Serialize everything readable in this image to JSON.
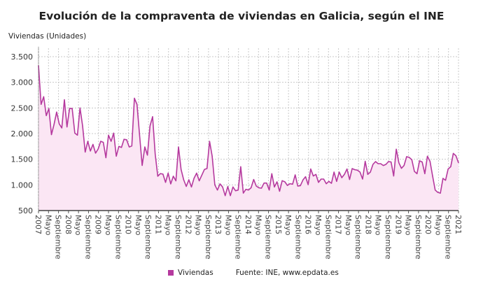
{
  "chart_data": {
    "type": "area",
    "title": "Evolución de la compraventa de viviendas en Galicia, según el INE",
    "ylabel": "Viviendas (Unidades)",
    "xlabel": "",
    "ylim": [
      500,
      3500
    ],
    "yticks": [
      "500",
      "1.000",
      "1.500",
      "2.000",
      "2.500",
      "3.000",
      "3.500"
    ],
    "ytick_values": [
      500,
      1000,
      1500,
      2000,
      2500,
      3000,
      3500
    ],
    "x_range": [
      "2007-01",
      "2021-01"
    ],
    "xticks": [
      "2007",
      "Mayo",
      "Septiembre",
      "2008",
      "Mayo",
      "Septiembre",
      "2009",
      "Mayo",
      "Septiembre",
      "2010",
      "Mayo",
      "Septiembre",
      "2011",
      "Mayo",
      "Septiembre",
      "2012",
      "Mayo",
      "Septiembre",
      "2013",
      "Mayo",
      "Septiembre",
      "2014",
      "Mayo",
      "Septiembre",
      "2015",
      "Mayo",
      "Septiembre",
      "2016",
      "Mayo",
      "Septiembre",
      "2017",
      "Mayo",
      "Septiembre",
      "2018",
      "Mayo",
      "Septiembre",
      "2019",
      "Mayo",
      "Septiembre",
      "2020",
      "Mayo",
      "Septiembre",
      "2021"
    ],
    "grid": true,
    "legend_placement": "bottom",
    "series": [
      {
        "name": "Viviendas",
        "color": "#b5399e",
        "fill": "#fbe6f4",
        "values": [
          3330,
          2570,
          2720,
          2350,
          2490,
          1980,
          2180,
          2420,
          2190,
          2110,
          2660,
          2130,
          2490,
          2490,
          2010,
          1970,
          2500,
          2150,
          1640,
          1850,
          1660,
          1790,
          1620,
          1700,
          1850,
          1830,
          1530,
          1970,
          1850,
          2010,
          1560,
          1750,
          1730,
          1890,
          1880,
          1740,
          1760,
          2690,
          2570,
          1970,
          1380,
          1740,
          1580,
          2150,
          2330,
          1600,
          1170,
          1220,
          1210,
          1050,
          1230,
          1020,
          1170,
          1080,
          1740,
          1300,
          1100,
          970,
          1100,
          960,
          1130,
          1230,
          1080,
          1190,
          1300,
          1320,
          1850,
          1560,
          1000,
          900,
          1020,
          960,
          790,
          968,
          790,
          960,
          886,
          900,
          1355,
          840,
          914,
          900,
          945,
          1105,
          977,
          945,
          936,
          1036,
          1036,
          900,
          1218,
          960,
          1060,
          877,
          1082,
          1060,
          990,
          1023,
          1014,
          1195,
          977,
          986,
          1096,
          1160,
          1005,
          1310,
          1173,
          1205,
          1050,
          1114,
          1114,
          1023,
          1068,
          1032,
          1250,
          1068,
          1250,
          1141,
          1205,
          1310,
          1105,
          1318,
          1296,
          1287,
          1250,
          1114,
          1460,
          1205,
          1250,
          1400,
          1455,
          1414,
          1414,
          1378,
          1400,
          1455,
          1446,
          1173,
          1696,
          1432,
          1323,
          1378,
          1550,
          1537,
          1491,
          1264,
          1218,
          1469,
          1446,
          1218,
          1560,
          1460,
          1173,
          900,
          854,
          840,
          1127,
          1091,
          1310,
          1355,
          1614,
          1569,
          1432
        ]
      }
    ]
  },
  "legend": {
    "series_label": "Viviendas",
    "source": "Fuente: INE, www.epdata.es"
  }
}
